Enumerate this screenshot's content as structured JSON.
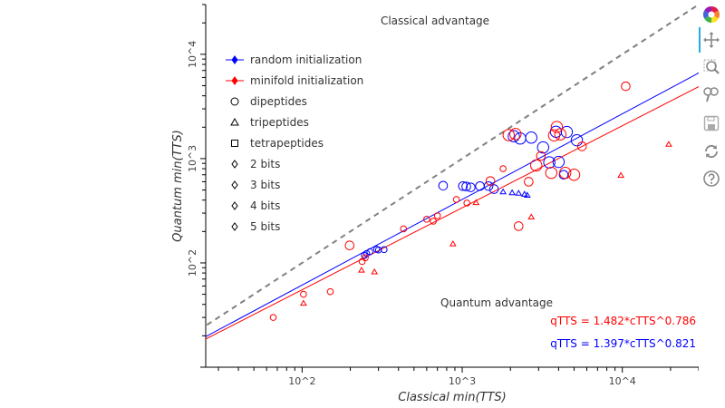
{
  "chart_data": {
    "type": "scatter",
    "xlabel": "Classical min(TTS)",
    "ylabel": "Quantum min(TTS)",
    "x_scale": "log",
    "y_scale": "log",
    "xlim": [
      25,
      30000
    ],
    "ylim": [
      10,
      30000
    ],
    "x_ticks": [
      {
        "value": 100,
        "label": "10^2"
      },
      {
        "value": 1000,
        "label": "10^3"
      },
      {
        "value": 10000,
        "label": "10^4"
      }
    ],
    "y_ticks": [
      {
        "value": 100,
        "label": "10^2"
      },
      {
        "value": 1000,
        "label": "10^3"
      },
      {
        "value": 10000,
        "label": "10^4"
      }
    ],
    "annotations": {
      "classical_advantage": "Classical advantage",
      "quantum_advantage": "Quantum advantage"
    },
    "fit_labels": [
      {
        "text": "qTTS = 1.482*cTTS^0.786",
        "color": "#ff0000"
      },
      {
        "text": "qTTS = 1.397*cTTS^0.821",
        "color": "#0000ff"
      }
    ],
    "fits": [
      {
        "name": "minifold initialization",
        "color": "#ff0000",
        "a": 1.482,
        "b": 0.786
      },
      {
        "name": "random initialization",
        "color": "#0000ff",
        "a": 1.397,
        "b": 0.821
      }
    ],
    "diagonal": {
      "style": "dashed",
      "color": "#808080"
    },
    "legend": {
      "placement": "top-left",
      "entries": [
        {
          "label": "random initialization",
          "marker": "diamond-line",
          "color": "#0000ff"
        },
        {
          "label": "minifold initialization",
          "marker": "diamond-line",
          "color": "#ff0000"
        },
        {
          "label": "dipeptides",
          "marker": "circle",
          "color": "#000000"
        },
        {
          "label": "tripeptides",
          "marker": "triangle",
          "color": "#000000"
        },
        {
          "label": "tetrapeptides",
          "marker": "square",
          "color": "#000000"
        },
        {
          "label": "2 bits",
          "marker": "diamond",
          "color": "#000000"
        },
        {
          "label": "3 bits",
          "marker": "diamond",
          "color": "#000000"
        },
        {
          "label": "4 bits",
          "marker": "diamond",
          "color": "#000000"
        },
        {
          "label": "5 bits",
          "marker": "diamond",
          "color": "#000000"
        }
      ]
    },
    "series": [
      {
        "name": "random initialization",
        "color": "#0000ff",
        "points": [
          {
            "x": 253,
            "y": 123,
            "shape": "circle",
            "size": "s"
          },
          {
            "x": 265,
            "y": 128,
            "shape": "circle",
            "size": "s"
          },
          {
            "x": 292,
            "y": 135,
            "shape": "circle",
            "size": "s"
          },
          {
            "x": 300,
            "y": 133,
            "shape": "circle",
            "size": "s"
          },
          {
            "x": 325,
            "y": 134,
            "shape": "circle",
            "size": "s"
          },
          {
            "x": 245,
            "y": 118,
            "shape": "circle",
            "size": "s"
          },
          {
            "x": 760,
            "y": 550,
            "shape": "circle",
            "size": "m"
          },
          {
            "x": 1010,
            "y": 545,
            "shape": "circle",
            "size": "m"
          },
          {
            "x": 1060,
            "y": 540,
            "shape": "circle",
            "size": "m"
          },
          {
            "x": 1130,
            "y": 530,
            "shape": "circle",
            "size": "m"
          },
          {
            "x": 1290,
            "y": 545,
            "shape": "circle",
            "size": "m"
          },
          {
            "x": 1460,
            "y": 545,
            "shape": "circle",
            "size": "m"
          },
          {
            "x": 1580,
            "y": 510,
            "shape": "circle",
            "size": "m"
          },
          {
            "x": 2100,
            "y": 1640,
            "shape": "circle",
            "size": "l"
          },
          {
            "x": 2300,
            "y": 1560,
            "shape": "circle",
            "size": "l"
          },
          {
            "x": 2700,
            "y": 1590,
            "shape": "circle",
            "size": "l"
          },
          {
            "x": 3200,
            "y": 1280,
            "shape": "circle",
            "size": "l"
          },
          {
            "x": 3500,
            "y": 920,
            "shape": "circle",
            "size": "l"
          },
          {
            "x": 3850,
            "y": 1810,
            "shape": "circle",
            "size": "l"
          },
          {
            "x": 4000,
            "y": 930,
            "shape": "circle",
            "size": "l"
          },
          {
            "x": 4500,
            "y": 1800,
            "shape": "circle",
            "size": "l"
          },
          {
            "x": 5200,
            "y": 1500,
            "shape": "circle",
            "size": "l"
          },
          {
            "x": 4300,
            "y": 700,
            "shape": "circle",
            "size": "m"
          },
          {
            "x": 1800,
            "y": 480,
            "shape": "triangle",
            "size": "s"
          },
          {
            "x": 2050,
            "y": 470,
            "shape": "triangle",
            "size": "s"
          },
          {
            "x": 2250,
            "y": 465,
            "shape": "triangle",
            "size": "s"
          },
          {
            "x": 2450,
            "y": 455,
            "shape": "triangle",
            "size": "s"
          },
          {
            "x": 2550,
            "y": 445,
            "shape": "triangle",
            "size": "s"
          }
        ]
      },
      {
        "name": "minifold initialization",
        "color": "#ff0000",
        "points": [
          {
            "x": 66,
            "y": 30,
            "shape": "circle",
            "size": "s"
          },
          {
            "x": 102,
            "y": 50,
            "shape": "circle",
            "size": "s"
          },
          {
            "x": 150,
            "y": 53,
            "shape": "circle",
            "size": "s"
          },
          {
            "x": 198,
            "y": 147,
            "shape": "circle",
            "size": "m"
          },
          {
            "x": 237,
            "y": 103,
            "shape": "circle",
            "size": "s"
          },
          {
            "x": 248,
            "y": 112,
            "shape": "circle",
            "size": "s"
          },
          {
            "x": 430,
            "y": 212,
            "shape": "circle",
            "size": "s"
          },
          {
            "x": 600,
            "y": 262,
            "shape": "circle",
            "size": "s"
          },
          {
            "x": 660,
            "y": 251,
            "shape": "circle",
            "size": "s"
          },
          {
            "x": 700,
            "y": 283,
            "shape": "circle",
            "size": "s"
          },
          {
            "x": 920,
            "y": 405,
            "shape": "circle",
            "size": "s"
          },
          {
            "x": 1070,
            "y": 375,
            "shape": "circle",
            "size": "s"
          },
          {
            "x": 1500,
            "y": 610,
            "shape": "circle",
            "size": "m"
          },
          {
            "x": 1800,
            "y": 800,
            "shape": "circle",
            "size": "s"
          },
          {
            "x": 1950,
            "y": 1680,
            "shape": "circle",
            "size": "l"
          },
          {
            "x": 2150,
            "y": 1720,
            "shape": "circle",
            "size": "l"
          },
          {
            "x": 2250,
            "y": 225,
            "shape": "circle",
            "size": "m"
          },
          {
            "x": 2600,
            "y": 600,
            "shape": "circle",
            "size": "m"
          },
          {
            "x": 2900,
            "y": 860,
            "shape": "circle",
            "size": "l"
          },
          {
            "x": 3100,
            "y": 1060,
            "shape": "circle",
            "size": "m"
          },
          {
            "x": 3750,
            "y": 1670,
            "shape": "circle",
            "size": "l"
          },
          {
            "x": 3900,
            "y": 2010,
            "shape": "circle",
            "size": "l"
          },
          {
            "x": 4100,
            "y": 1710,
            "shape": "circle",
            "size": "l"
          },
          {
            "x": 3600,
            "y": 730,
            "shape": "circle",
            "size": "l"
          },
          {
            "x": 4400,
            "y": 730,
            "shape": "circle",
            "size": "l"
          },
          {
            "x": 5000,
            "y": 700,
            "shape": "circle",
            "size": "l"
          },
          {
            "x": 5600,
            "y": 1310,
            "shape": "circle",
            "size": "m"
          },
          {
            "x": 10500,
            "y": 4940,
            "shape": "circle",
            "size": "m"
          },
          {
            "x": 102,
            "y": 41,
            "shape": "triangle",
            "size": "s"
          },
          {
            "x": 235,
            "y": 85,
            "shape": "triangle",
            "size": "s"
          },
          {
            "x": 283,
            "y": 82,
            "shape": "triangle",
            "size": "s"
          },
          {
            "x": 875,
            "y": 152,
            "shape": "triangle",
            "size": "s"
          },
          {
            "x": 1220,
            "y": 378,
            "shape": "triangle",
            "size": "s"
          },
          {
            "x": 2700,
            "y": 275,
            "shape": "triangle",
            "size": "s"
          },
          {
            "x": 9800,
            "y": 690,
            "shape": "triangle",
            "size": "s"
          },
          {
            "x": 19500,
            "y": 1370,
            "shape": "triangle",
            "size": "s"
          }
        ]
      }
    ]
  },
  "toolbar": {
    "tools": [
      {
        "name": "bokeh-logo",
        "icon": "bokeh-logo-icon"
      },
      {
        "name": "pan-tool",
        "icon": "pan-icon"
      },
      {
        "name": "box-zoom-tool",
        "icon": "box-zoom-icon"
      },
      {
        "name": "wheel-zoom-tool",
        "icon": "wheel-zoom-icon"
      },
      {
        "name": "save-tool",
        "icon": "save-icon"
      },
      {
        "name": "reset-tool",
        "icon": "reset-icon"
      },
      {
        "name": "help-tool",
        "icon": "help-icon"
      }
    ]
  }
}
